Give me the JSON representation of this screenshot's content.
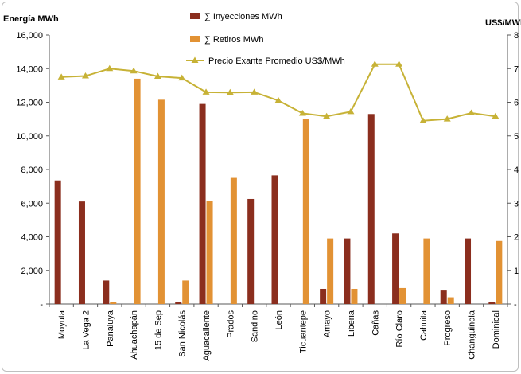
{
  "chart_data": {
    "type": "bar",
    "ylabel": "Energía MWh",
    "y2label": "US$/MWh",
    "ylim": [
      0,
      16000
    ],
    "y2lim": [
      0,
      8
    ],
    "yticks": [
      "-",
      "2,000",
      "4,000",
      "6,000",
      "8,000",
      "10,000",
      "12,000",
      "14,000",
      "16,000"
    ],
    "y2ticks": [
      "-",
      "1",
      "2",
      "3",
      "4",
      "5",
      "6",
      "7",
      "8"
    ],
    "categories": [
      "Moyuta",
      "La Vega 2",
      "Panaluya",
      "Ahuachapán",
      "15 de Sep",
      "San Nicolás",
      "Aguacaliente",
      "Prados",
      "Sandino",
      "León",
      "Ticuantepe",
      "Amayo",
      "Liberia",
      "Cañas",
      "Río Claro",
      "Cahuita",
      "Progreso",
      "Changuinola",
      "Dominical"
    ],
    "series": [
      {
        "name": "∑ Inyecciones MWh",
        "type": "bar",
        "axis": "left",
        "color": "#8b2e1e",
        "values": [
          7350,
          6100,
          1400,
          0,
          0,
          100,
          11900,
          0,
          6250,
          7650,
          0,
          900,
          3900,
          11300,
          4200,
          0,
          800,
          3900,
          100
        ]
      },
      {
        "name": "∑ Retiros MWh",
        "type": "bar",
        "axis": "left",
        "color": "#e29234",
        "values": [
          0,
          0,
          120,
          13400,
          12150,
          1400,
          6150,
          7500,
          0,
          0,
          11000,
          3900,
          900,
          0,
          950,
          3900,
          400,
          0,
          3750
        ]
      },
      {
        "name": "Precio Exante Promedio US$/MWh",
        "type": "line",
        "axis": "right",
        "color": "#c7b236",
        "values": [
          6.75,
          6.78,
          7.0,
          6.93,
          6.77,
          6.72,
          6.3,
          6.29,
          6.3,
          6.05,
          5.67,
          5.58,
          5.72,
          7.13,
          7.13,
          5.45,
          5.5,
          5.68,
          5.58
        ]
      }
    ]
  }
}
